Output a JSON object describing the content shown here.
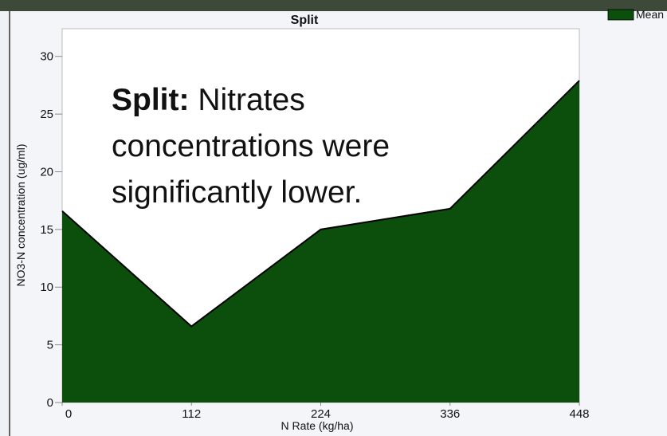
{
  "chart_data": {
    "type": "area",
    "title": "Split",
    "x_label": "N Rate (kg/ha)",
    "y_label": "NO3-N concentration (ug/ml)",
    "x": [
      0,
      112,
      224,
      336,
      448
    ],
    "series": [
      {
        "name": "Mean",
        "color": "#0c4f0c",
        "values": [
          16.6,
          6.6,
          15.0,
          16.8,
          27.9
        ]
      }
    ],
    "xlim": [
      0,
      448
    ],
    "xticks": [
      0,
      112,
      224,
      336,
      448
    ],
    "ylim": [
      0,
      32.4
    ],
    "yticks": [
      0,
      5,
      10,
      15,
      20,
      25,
      30
    ],
    "legend": "top-right",
    "annotation": {
      "lead": "Split:",
      "lines": [
        "Nitrates",
        "concentrations were",
        "significantly lower."
      ]
    }
  }
}
